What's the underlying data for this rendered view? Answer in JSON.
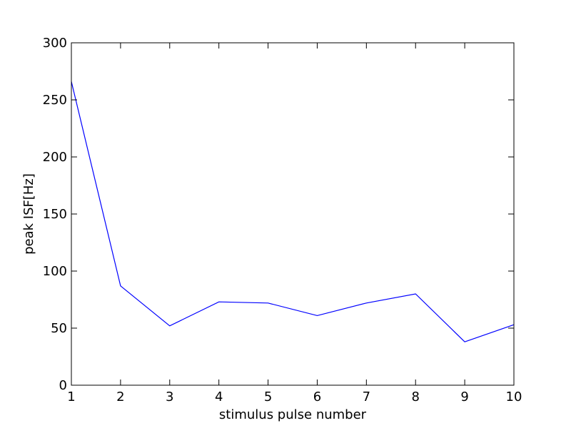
{
  "chart_data": {
    "type": "line",
    "title": "",
    "xlabel": "stimulus pulse number",
    "ylabel": "peak ISF[Hz]",
    "xlim": [
      1,
      10
    ],
    "ylim": [
      0,
      300
    ],
    "xticks": [
      1,
      2,
      3,
      4,
      5,
      6,
      7,
      8,
      9,
      10
    ],
    "yticks": [
      0,
      50,
      100,
      150,
      200,
      250,
      300
    ],
    "grid": false,
    "legend": "none",
    "series": [
      {
        "color": "#0000ff",
        "x": [
          1,
          2,
          3,
          4,
          5,
          6,
          7,
          8,
          9,
          10
        ],
        "y": [
          266,
          87,
          52,
          73,
          72,
          61,
          72,
          80,
          38,
          53
        ]
      }
    ]
  }
}
